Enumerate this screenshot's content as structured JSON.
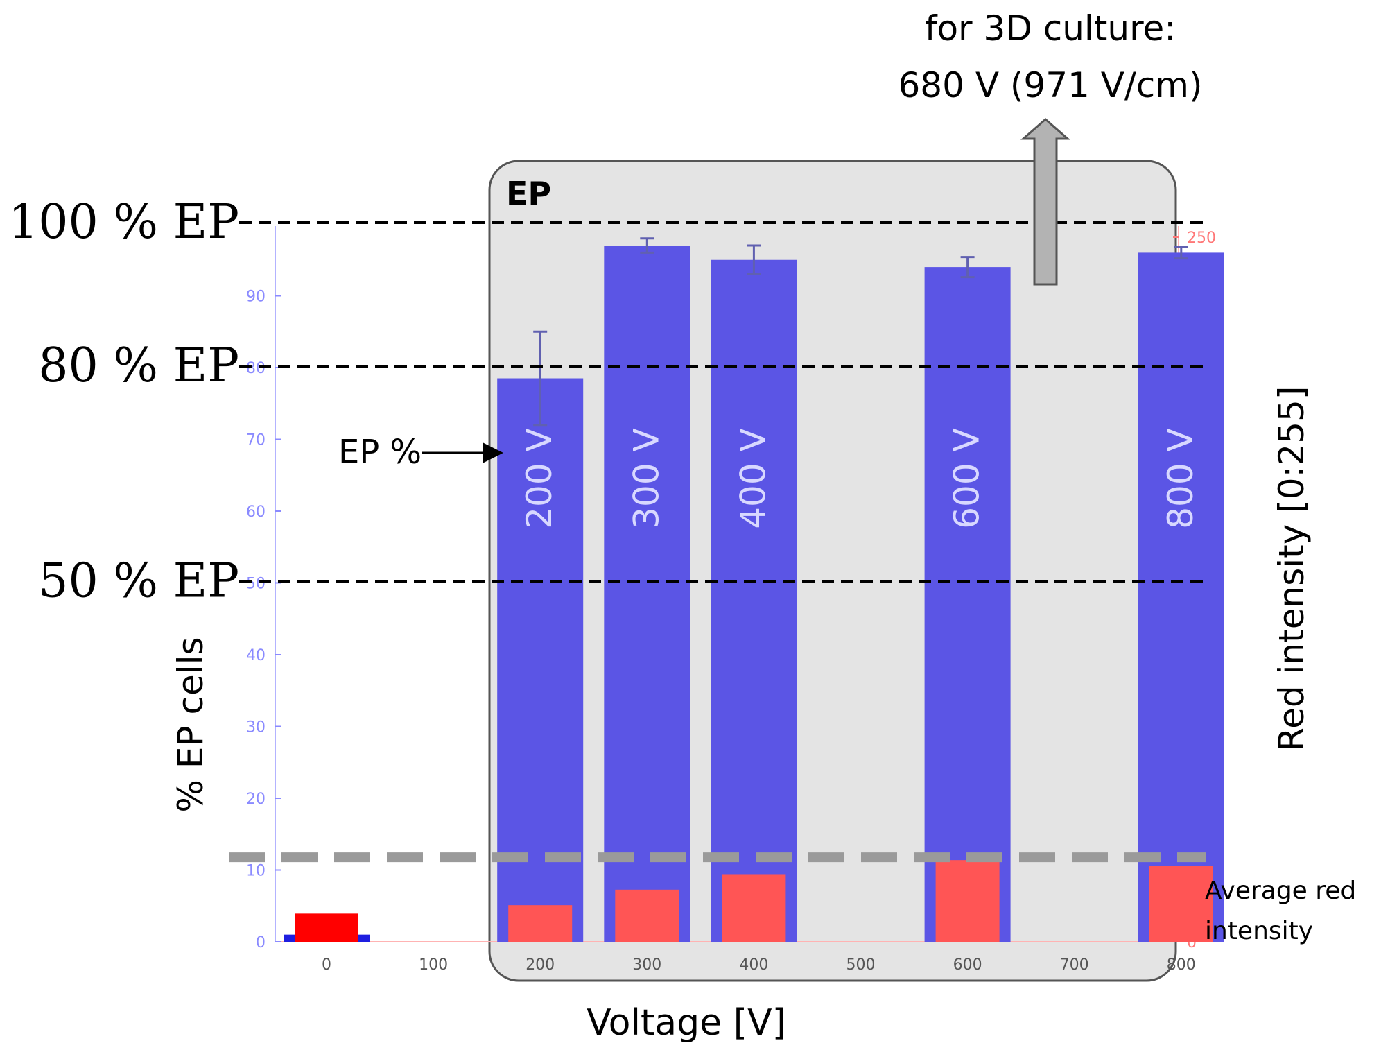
{
  "chart_data": {
    "type": "bar",
    "categories": [
      "0",
      "200",
      "300",
      "400",
      "600",
      "800"
    ],
    "x": [
      0,
      200,
      300,
      400,
      600,
      800
    ],
    "xlabel": "Voltage [V]",
    "ylabel": "% EP cells",
    "y2label": "Red intensity [0:255]",
    "xlim": [
      -50,
      800
    ],
    "xticks": [
      0,
      100,
      200,
      300,
      400,
      500,
      600,
      700,
      800
    ],
    "ylim": [
      0,
      100
    ],
    "yticks": [
      0,
      10,
      20,
      30,
      40,
      50,
      60,
      70,
      80,
      90
    ],
    "y2lim": [
      0,
      255
    ],
    "y2ticks": [
      0,
      50,
      100,
      150,
      200,
      250
    ],
    "series": [
      {
        "name": "EP %",
        "axis": "left",
        "color": "#5b55e5",
        "values": [
          1,
          78.5,
          97,
          95,
          94,
          96
        ],
        "errors": [
          0,
          6.5,
          1,
          2,
          1.4,
          0.8
        ],
        "bar_labels": [
          "",
          "200 V",
          "300 V",
          "400 V",
          "600 V",
          "800 V"
        ]
      },
      {
        "name": "Average red intensity",
        "axis": "right",
        "color": "#ff5555",
        "control_color": "#ff0000",
        "values": [
          10,
          13,
          18.5,
          24,
          29,
          27
        ]
      }
    ],
    "reference_lines": [
      {
        "label": "100 % EP",
        "value": 100
      },
      {
        "label": "80 % EP",
        "value": 80
      },
      {
        "label": "50 % EP",
        "value": 50
      }
    ],
    "threshold_line": {
      "axis": "right",
      "value": 30,
      "color": "#999999"
    },
    "region": {
      "label": "EP",
      "from": 150,
      "to": 800
    },
    "annotations": {
      "ep_arrow": "EP %",
      "culture_line1": "for 3D culture:",
      "culture_line2": "680 V (971 V/cm)",
      "red_line1": "Average red",
      "red_line2": "intensity"
    },
    "colors": {
      "left_axis": "#8a8aff",
      "right_axis": "#ff7777",
      "region_fill": "#e4e4e4",
      "region_stroke": "#555555",
      "arrow_fill": "#b3b3b3"
    }
  }
}
